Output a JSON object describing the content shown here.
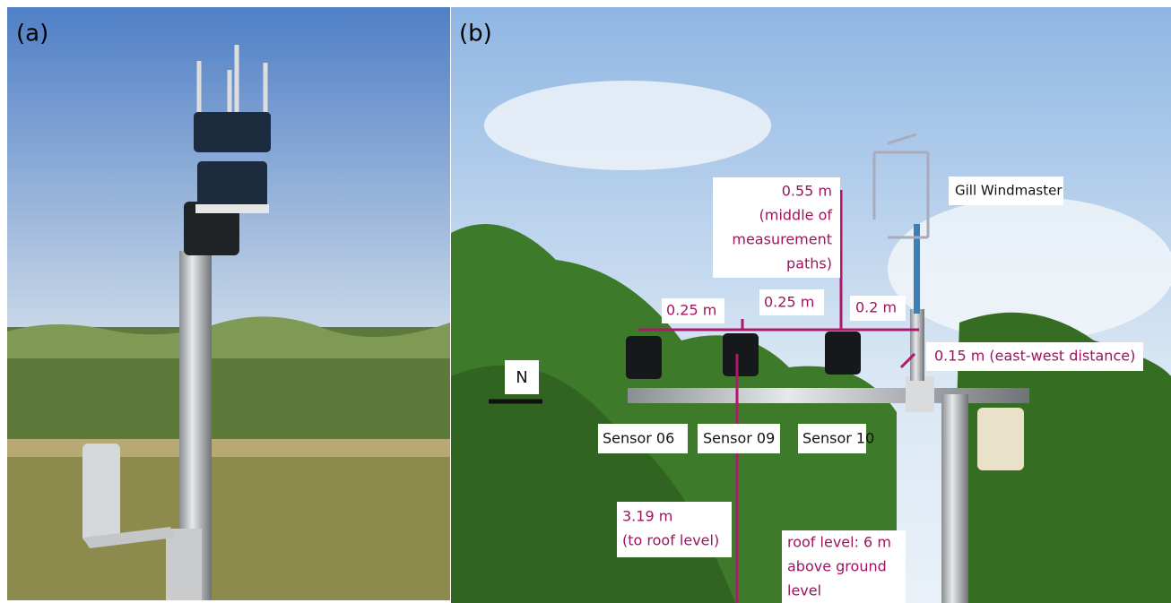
{
  "panel_a": {
    "label": "(a)"
  },
  "panel_b": {
    "label": "(b)",
    "labels": [
      {
        "lines": [
          "0.55 m",
          "(middle of",
          "measurement",
          "paths)"
        ]
      },
      {
        "lines": [
          "Gill Windmaster"
        ]
      },
      {
        "lines": [
          "0.25 m"
        ]
      },
      {
        "lines": [
          "0.25 m"
        ]
      },
      {
        "lines": [
          "0.2 m"
        ]
      },
      {
        "lines": [
          "0.15 m (east-west distance)"
        ]
      },
      {
        "lines": [
          "N"
        ]
      },
      {
        "lines": [
          "Sensor 06"
        ]
      },
      {
        "lines": [
          "Sensor 09"
        ]
      },
      {
        "lines": [
          "Sensor 10"
        ]
      },
      {
        "lines": [
          "3.19 m",
          "(to roof level)"
        ]
      },
      {
        "lines": [
          "roof level: 6 m",
          "above ground",
          "level"
        ]
      }
    ]
  }
}
